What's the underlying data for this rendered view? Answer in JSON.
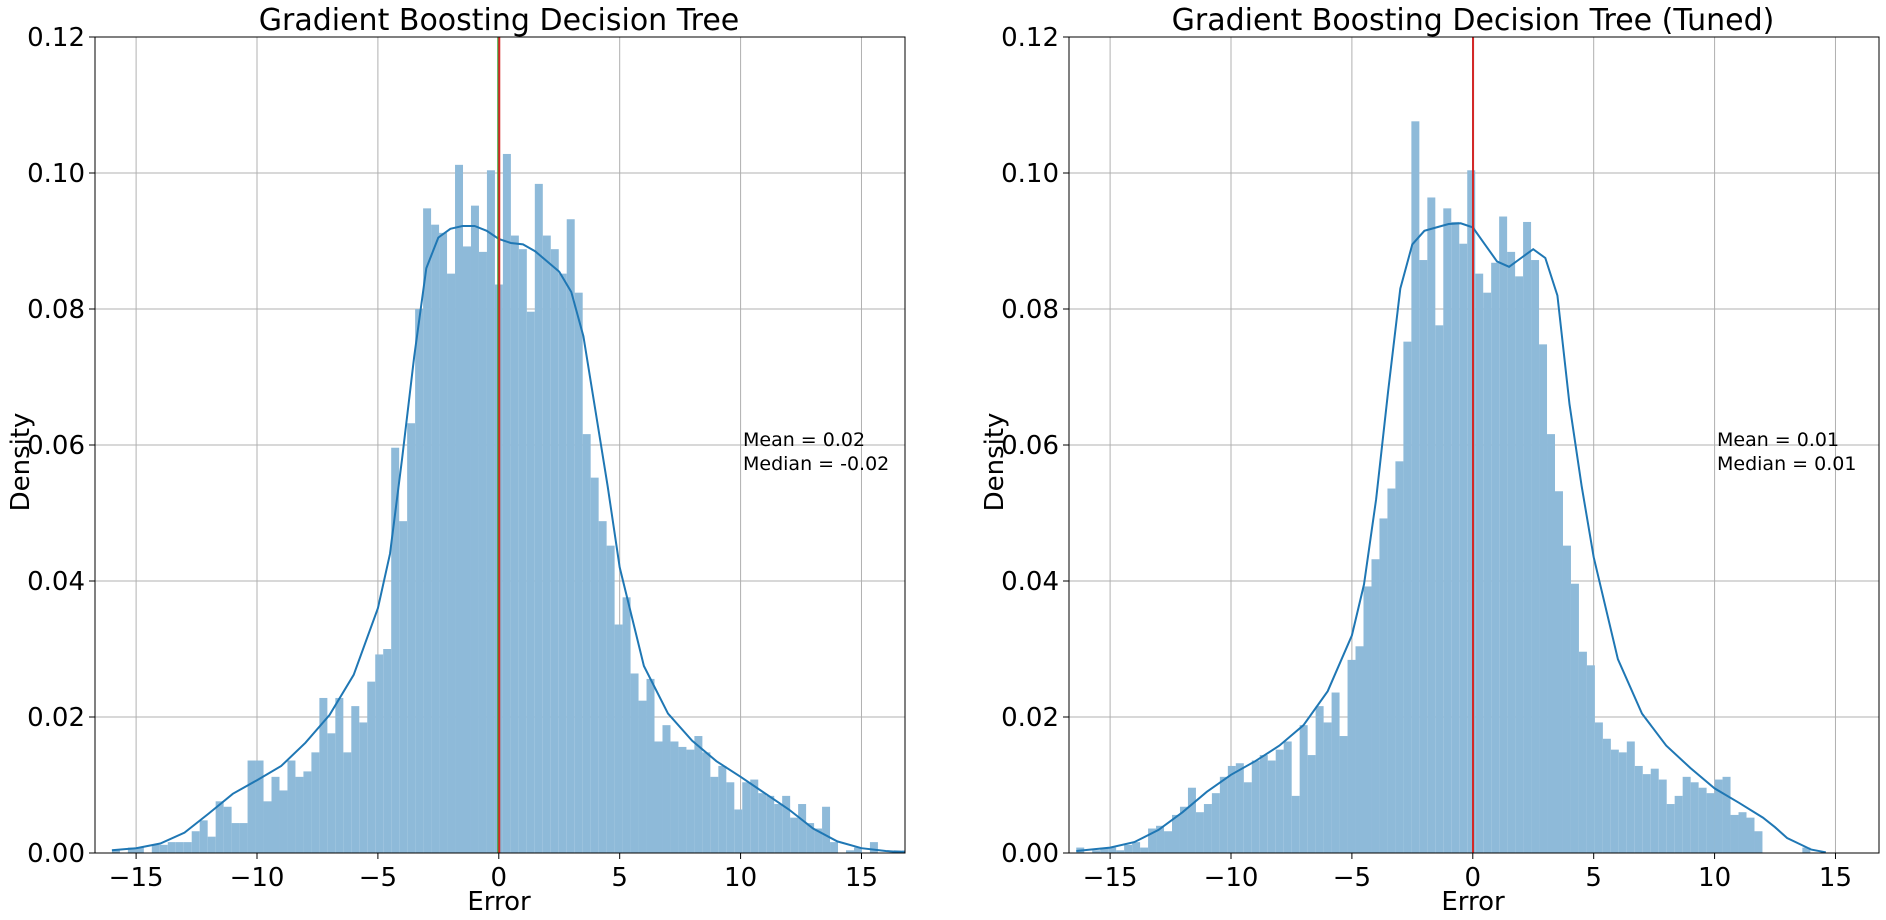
{
  "chart_data": [
    {
      "type": "histogram",
      "title": "Gradient Boosting Decision Tree",
      "xlabel": "Error",
      "ylabel": "Density",
      "xlim": [
        -16.7,
        16.8
      ],
      "ylim": [
        0,
        0.12
      ],
      "xticks": [
        -15,
        -10,
        -5,
        0,
        5,
        10,
        15
      ],
      "xtick_labels": [
        "−15",
        "−10",
        "−5",
        "0",
        "5",
        "10",
        "15"
      ],
      "yticks": [
        0.0,
        0.02,
        0.04,
        0.06,
        0.08,
        0.1,
        0.12
      ],
      "ytick_labels": [
        "0.00",
        "0.02",
        "0.04",
        "0.06",
        "0.08",
        "0.10",
        "0.12"
      ],
      "grid": true,
      "bins": {
        "start": -16.0,
        "width": 0.33,
        "values": [
          0.0004,
          0.0,
          0.0008,
          0.0008,
          0.0,
          0.0012,
          0.0012,
          0.0016,
          0.0016,
          0.0016,
          0.0032,
          0.0048,
          0.0024,
          0.0076,
          0.0068,
          0.0044,
          0.0044,
          0.0136,
          0.0136,
          0.0076,
          0.0112,
          0.0092,
          0.0136,
          0.0112,
          0.012,
          0.0148,
          0.0228,
          0.0176,
          0.0228,
          0.0148,
          0.0216,
          0.0192,
          0.0252,
          0.0292,
          0.03,
          0.0596,
          0.0488,
          0.0632,
          0.08,
          0.0948,
          0.0924,
          0.0912,
          0.0852,
          0.1012,
          0.0892,
          0.0952,
          0.0884,
          0.1004,
          0.0836,
          0.1028,
          0.0908,
          0.0888,
          0.0796,
          0.0984,
          0.0908,
          0.0888,
          0.0852,
          0.0932,
          0.0824,
          0.0616,
          0.0552,
          0.0488,
          0.0452,
          0.0336,
          0.0376,
          0.0264,
          0.0224,
          0.0256,
          0.0164,
          0.0188,
          0.0164,
          0.0156,
          0.0152,
          0.0172,
          0.0148,
          0.0112,
          0.0128,
          0.0104,
          0.0064,
          0.0104,
          0.0108,
          0.0088,
          0.0084,
          0.0072,
          0.0084,
          0.0052,
          0.0072,
          0.0044,
          0.0036,
          0.0068,
          0.0016,
          0.0,
          0.0004,
          0.0008,
          0.0,
          0.0016,
          0.0,
          0.0,
          0.0004,
          0.0004,
          0.0004
        ]
      },
      "kde": {
        "x": [
          -16,
          -15,
          -14,
          -13,
          -12,
          -11,
          -10,
          -9,
          -8,
          -7,
          -6,
          -5,
          -4.5,
          -4,
          -3.5,
          -3,
          -2.5,
          -2,
          -1.5,
          -1,
          -0.5,
          0,
          0.5,
          1,
          1.5,
          2,
          2.5,
          3,
          3.5,
          4,
          4.5,
          5,
          6,
          7,
          8,
          9,
          10,
          11,
          12,
          13,
          14,
          15,
          16,
          16.8
        ],
        "y": [
          0.0004,
          0.0007,
          0.0014,
          0.003,
          0.0058,
          0.0087,
          0.0107,
          0.0128,
          0.0162,
          0.0203,
          0.0262,
          0.036,
          0.044,
          0.058,
          0.073,
          0.086,
          0.0905,
          0.0918,
          0.0922,
          0.0922,
          0.0915,
          0.0903,
          0.0897,
          0.0895,
          0.0885,
          0.087,
          0.0855,
          0.0825,
          0.076,
          0.065,
          0.054,
          0.042,
          0.0275,
          0.0205,
          0.0165,
          0.0135,
          0.0112,
          0.0088,
          0.0064,
          0.0036,
          0.0017,
          0.0007,
          0.0003,
          0.0001
        ]
      },
      "mean_line": 0.02,
      "median_line": -0.02,
      "annotations": [
        "Mean = 0.02",
        "Median = -0.02"
      ]
    },
    {
      "type": "histogram",
      "title": "Gradient Boosting Decision Tree (Tuned)",
      "xlabel": "Error",
      "ylabel": "Density",
      "xlim": [
        -16.7,
        16.8
      ],
      "ylim": [
        0,
        0.12
      ],
      "xticks": [
        -15,
        -10,
        -5,
        0,
        5,
        10,
        15
      ],
      "xtick_labels": [
        "−15",
        "−10",
        "−5",
        "0",
        "5",
        "10",
        "15"
      ],
      "yticks": [
        0.0,
        0.02,
        0.04,
        0.06,
        0.08,
        0.1,
        0.12
      ],
      "ytick_labels": [
        "0.00",
        "0.02",
        "0.04",
        "0.06",
        "0.08",
        "0.10",
        "0.12"
      ],
      "grid": true,
      "bins": {
        "start": -16.4,
        "width": 0.33,
        "values": [
          0.0008,
          0.0,
          0.0004,
          0.0008,
          0.0008,
          0.0004,
          0.0012,
          0.0016,
          0.0008,
          0.0036,
          0.004,
          0.0032,
          0.0056,
          0.0068,
          0.0096,
          0.006,
          0.0072,
          0.0088,
          0.0112,
          0.0128,
          0.0132,
          0.0104,
          0.0136,
          0.0144,
          0.0136,
          0.0152,
          0.0164,
          0.0084,
          0.0188,
          0.0144,
          0.0216,
          0.0192,
          0.0236,
          0.0172,
          0.0284,
          0.0304,
          0.0392,
          0.0432,
          0.0492,
          0.0536,
          0.0576,
          0.0752,
          0.1076,
          0.0872,
          0.0964,
          0.0776,
          0.0948,
          0.0928,
          0.0896,
          0.1004,
          0.0852,
          0.0824,
          0.0868,
          0.0936,
          0.0884,
          0.0848,
          0.0928,
          0.0872,
          0.0748,
          0.0616,
          0.0532,
          0.0452,
          0.0396,
          0.0296,
          0.0276,
          0.0192,
          0.0168,
          0.0152,
          0.0148,
          0.0164,
          0.0128,
          0.0116,
          0.0124,
          0.0108,
          0.0072,
          0.0084,
          0.0112,
          0.0104,
          0.0096,
          0.0088,
          0.0108,
          0.0112,
          0.0056,
          0.006,
          0.0052,
          0.0032,
          0.0,
          0.0,
          0.0,
          0.0,
          0.0,
          0.0008
        ]
      },
      "kde": {
        "x": [
          -16.4,
          -15,
          -14,
          -13,
          -12,
          -11,
          -10,
          -9,
          -8,
          -7,
          -6,
          -5,
          -4.5,
          -4,
          -3.5,
          -3,
          -2.5,
          -2,
          -1.5,
          -1,
          -0.5,
          0,
          0.5,
          1,
          1.5,
          2,
          2.5,
          3,
          3.5,
          4,
          4.5,
          5,
          6,
          7,
          8,
          9,
          10,
          11,
          12,
          12.5,
          13,
          14,
          14.6
        ],
        "y": [
          0.0003,
          0.0008,
          0.0016,
          0.0034,
          0.006,
          0.009,
          0.0115,
          0.0135,
          0.0158,
          0.0188,
          0.0238,
          0.032,
          0.0395,
          0.052,
          0.068,
          0.083,
          0.0895,
          0.0915,
          0.092,
          0.0925,
          0.0926,
          0.092,
          0.0895,
          0.087,
          0.0862,
          0.0875,
          0.0888,
          0.0875,
          0.082,
          0.066,
          0.054,
          0.0435,
          0.0285,
          0.0205,
          0.0158,
          0.0125,
          0.0095,
          0.0074,
          0.0052,
          0.0038,
          0.0022,
          0.0005,
          0.0001
        ]
      },
      "mean_line": 0.01,
      "median_line": 0.01,
      "annotations": [
        "Mean = 0.01",
        "Median = 0.01"
      ]
    }
  ],
  "colors": {
    "bar_fill": "#8ebad9",
    "kde_line": "#1f77b4",
    "mean_line": "#d62728",
    "median_line": "#2ca02c",
    "grid": "#b0b0b0"
  }
}
